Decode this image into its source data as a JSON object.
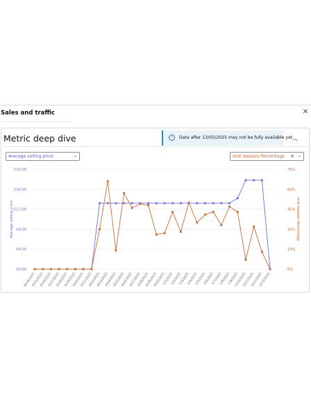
{
  "header": {
    "title": "Sales and traffic",
    "close_icon": "close-icon"
  },
  "card": {
    "title": "Metric deep dive",
    "banner": {
      "icon": "info-icon",
      "text": "Data after 13/05/2025 may not be fully available yet"
    },
    "collapse_icon": "chevron-up-icon"
  },
  "selectors": {
    "left": {
      "label": "Average selling price"
    },
    "right": {
      "label": "Unit Session Percentage"
    }
  },
  "colors": {
    "series1": "#6e6edc",
    "series2": "#c8692e",
    "grid": "#ececec"
  },
  "chart_data": {
    "type": "line",
    "x": [
      "4/14/2025",
      "4/15/2025",
      "4/16/2025",
      "4/17/2025",
      "4/18/2025",
      "4/19/2025",
      "4/20/2025",
      "4/21/2025",
      "4/22/2025",
      "4/23/2025",
      "4/24/2025",
      "4/25/2025",
      "4/26/2025",
      "4/27/2025",
      "4/28/2025",
      "4/29/2025",
      "4/30/2025",
      "5/1/2025",
      "5/2/2025",
      "5/3/2025",
      "5/4/2025",
      "5/5/2025",
      "5/6/2025",
      "5/7/2025",
      "5/8/2025",
      "5/9/2025",
      "5/10/2025",
      "5/11/2025",
      "5/12/2025",
      "5/13/2025"
    ],
    "series": [
      {
        "name": "Average selling price",
        "axis": "left",
        "values": [
          0,
          0,
          0,
          0,
          0,
          0,
          0,
          0,
          13.2,
          13.2,
          13.2,
          13.2,
          13.2,
          13.2,
          13.2,
          13.2,
          13.2,
          13.2,
          13.2,
          13.2,
          13.2,
          13.2,
          13.2,
          13.2,
          13.2,
          14.2,
          17.8,
          17.8,
          17.8,
          0
        ]
      },
      {
        "name": "Unit Session Percentage",
        "axis": "right",
        "values": [
          0,
          0,
          0,
          0,
          0,
          0,
          0,
          0,
          30,
          66,
          14,
          57,
          46,
          49,
          48,
          26,
          27,
          43,
          28,
          50,
          35,
          41,
          43,
          33,
          47,
          43,
          7,
          32,
          13,
          0
        ]
      }
    ],
    "yleft": {
      "label": "Average selling price",
      "ticks": [
        "€0.00",
        "€4.00",
        "€8.00",
        "€12.00",
        "€16.00",
        "€20.00"
      ],
      "range": [
        0,
        20
      ]
    },
    "yright": {
      "label": "Unit Session Percentage",
      "ticks": [
        "0%",
        "15%",
        "30%",
        "45%",
        "60%",
        "75%"
      ],
      "range": [
        0,
        75
      ]
    },
    "grid": true
  }
}
